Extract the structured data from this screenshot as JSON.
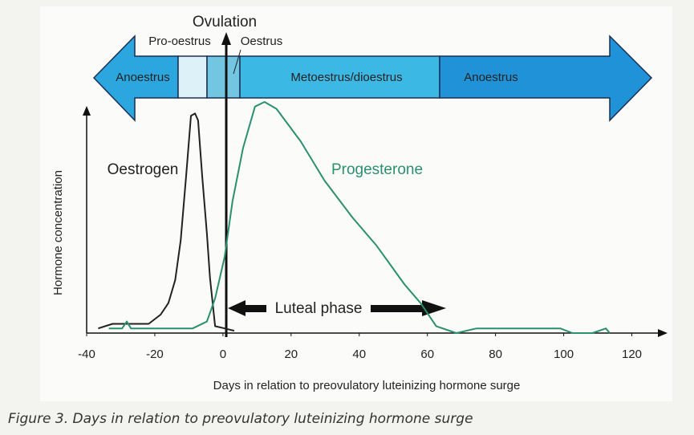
{
  "chart_data": {
    "type": "line",
    "caption": "Figure 3. Days in relation to preovulatory luteinizing hormone surge",
    "x_label": "Days in relation to preovulatory luteinizing hormone surge",
    "y_label": "Hormone concentration",
    "ovulation_label": "Ovulation",
    "luteal_label": "Luteal phase",
    "phases": [
      "Anoestrus",
      "Pro-oestrus",
      "Oestrus",
      "Metoestrus/dioestrus",
      "Anoestrus"
    ],
    "xlim": [
      -40,
      130
    ],
    "xticks": [
      -40,
      -20,
      0,
      20,
      40,
      60,
      80,
      100,
      120
    ],
    "ylim": [
      0,
      100
    ],
    "series": [
      {
        "name": "Oestrogen",
        "color": "#222222",
        "x": [
          -36.6,
          -32.4,
          -21.8,
          -18.3,
          -16,
          -14,
          -12.4,
          -10.8,
          -9.4,
          -8.2,
          -7.3,
          -6.1,
          -4.7,
          -3.8,
          -2.3,
          0.5,
          3.3
        ],
        "values": [
          2,
          4,
          4,
          8,
          13,
          23,
          40,
          68,
          94,
          95,
          92,
          68,
          43,
          24,
          3,
          2,
          1
        ]
      },
      {
        "name": "Progesterone",
        "color": "#2a9070",
        "x": [
          -33.5,
          -29.6,
          -28.2,
          -27,
          -8.9,
          -4.7,
          -2.3,
          0.5,
          2.8,
          5.9,
          9.4,
          12.2,
          15.7,
          22.8,
          29.8,
          38,
          45,
          53.3,
          58,
          62.6,
          68.5,
          74.4,
          99,
          102.6,
          108.4,
          112.4,
          113.5
        ],
        "values": [
          2,
          2,
          5,
          2,
          2,
          5,
          15,
          33,
          57,
          80,
          98,
          100,
          97,
          83,
          66,
          50,
          38,
          21,
          13,
          3,
          0,
          2,
          2,
          0,
          0,
          2,
          0
        ]
      }
    ]
  }
}
